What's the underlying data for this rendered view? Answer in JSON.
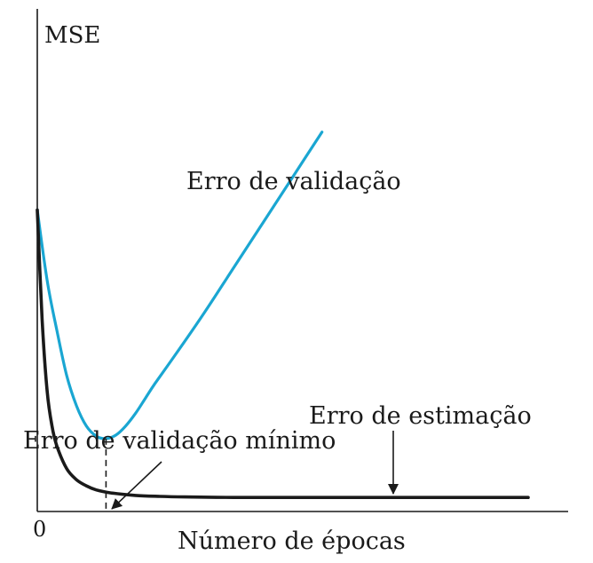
{
  "chart_data": {
    "type": "line",
    "title": "",
    "ylabel": "MSE",
    "xlabel": "Número de épocas",
    "x_origin_label": "0",
    "xlim": [
      0,
      100
    ],
    "ylim": [
      0,
      100
    ],
    "series": [
      {
        "name": "Erro de validação",
        "color": "#1aa6d2",
        "x": [
          0,
          2,
          4,
          6,
          8,
          10,
          12,
          14,
          16,
          18,
          20,
          22,
          24,
          28,
          34,
          40,
          46,
          52,
          58
        ],
        "y": [
          60,
          46,
          36,
          27,
          21,
          17,
          15,
          14.5,
          15.2,
          17,
          19.5,
          22.5,
          25.5,
          31,
          39.5,
          48.5,
          57.5,
          66.5,
          75.5
        ]
      },
      {
        "name": "Erro de estimação",
        "color": "#1a1a1a",
        "x": [
          0,
          1,
          2,
          3,
          4,
          6,
          8,
          10,
          12,
          15,
          20,
          25,
          30,
          40,
          50,
          60,
          70,
          80,
          100
        ],
        "y": [
          60,
          38,
          24,
          17,
          13,
          8.5,
          6.3,
          5.1,
          4.3,
          3.7,
          3.2,
          3,
          2.9,
          2.8,
          2.8,
          2.8,
          2.8,
          2.8,
          2.8
        ]
      }
    ],
    "annotations": [
      {
        "text": "Erro de validação",
        "target_series": 0
      },
      {
        "text": "Erro de estimação",
        "target_series": 1,
        "arrow": true
      },
      {
        "text": "Erro de validação mínimo",
        "arrow": true,
        "marks": "minimum of validation error"
      }
    ],
    "grid": false,
    "legend": "none"
  }
}
